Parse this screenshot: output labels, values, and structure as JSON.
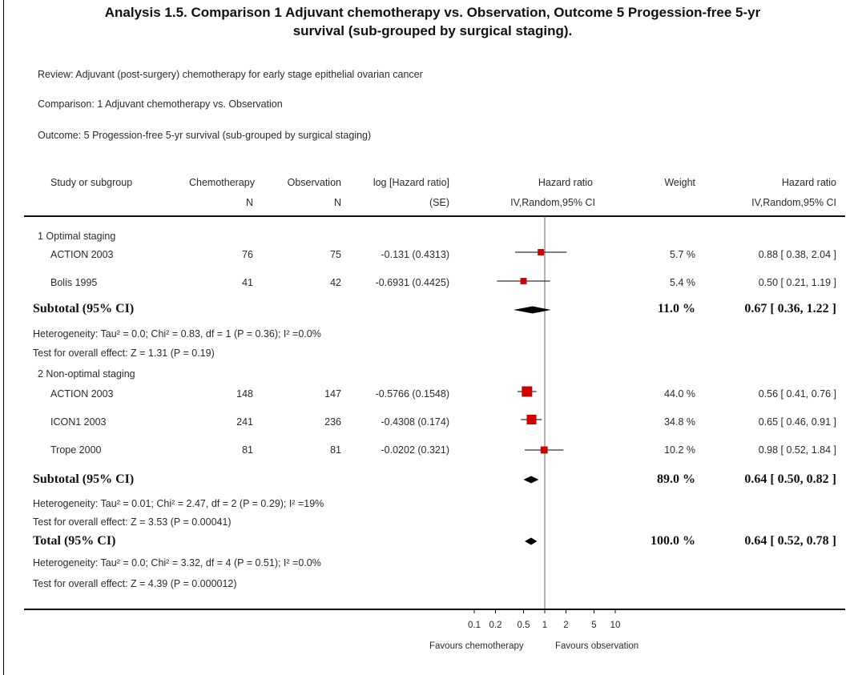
{
  "title": {
    "line1": "Analysis 1.5.   Comparison 1 Adjuvant chemotherapy vs. Observation, Outcome 5 Progession-free 5-yr",
    "line2": "survival (sub-grouped by surgical staging)."
  },
  "meta": {
    "review": "Review:   Adjuvant (post-surgery) chemotherapy for early stage epithelial ovarian cancer",
    "comparison": "Comparison:   1 Adjuvant chemotherapy vs. Observation",
    "outcome": "Outcome:   5 Progession-free 5-yr survival (sub-grouped by surgical staging)"
  },
  "header": {
    "study": "Study or subgroup",
    "chemo": "Chemotherapy",
    "chemo_n": "N",
    "obs": "Observation",
    "obs_n": "N",
    "loghr": "log [Hazard ratio]",
    "se": "(SE)",
    "hr_plot": "Hazard ratio",
    "hr_plot_sub": "IV,Random,95% CI",
    "weight": "Weight",
    "hr": "Hazard ratio",
    "hr_sub": "IV,Random,95% CI"
  },
  "groups": [
    {
      "label": "1 Optimal staging",
      "rows": [
        {
          "study": "ACTION 2003",
          "chemo_n": "76",
          "obs_n": "75",
          "loghr": "-0.131 (0.4313)",
          "weight": "5.7 %",
          "hr_text": "0.88 [ 0.38, 2.04 ]"
        },
        {
          "study": "Bolis 1995",
          "chemo_n": "41",
          "obs_n": "42",
          "loghr": "-0.6931 (0.4425)",
          "weight": "5.4 %",
          "hr_text": "0.50 [ 0.21, 1.19 ]"
        }
      ],
      "subtotal": {
        "label": "Subtotal (95% CI)",
        "weight": "11.0 %",
        "hr_text": "0.67 [ 0.36, 1.22 ]"
      },
      "heterogeneity": "Heterogeneity: Tau² = 0.0; Chi² = 0.83, df = 1 (P = 0.36); I² =0.0%",
      "overall": "Test for overall effect: Z = 1.31  (P = 0.19)"
    },
    {
      "label": "2 Non-optimal staging",
      "rows": [
        {
          "study": "ACTION 2003",
          "chemo_n": "148",
          "obs_n": "147",
          "loghr": "-0.5766 (0.1548)",
          "weight": "44.0 %",
          "hr_text": "0.56 [ 0.41, 0.76 ]"
        },
        {
          "study": "ICON1 2003",
          "chemo_n": "241",
          "obs_n": "236",
          "loghr": "-0.4308 (0.174)",
          "weight": "34.8 %",
          "hr_text": "0.65 [ 0.46, 0.91 ]"
        },
        {
          "study": "Trope 2000",
          "chemo_n": "81",
          "obs_n": "81",
          "loghr": "-0.0202 (0.321)",
          "weight": "10.2 %",
          "hr_text": "0.98 [ 0.52, 1.84 ]"
        }
      ],
      "subtotal": {
        "label": "Subtotal (95% CI)",
        "weight": "89.0 %",
        "hr_text": "0.64 [ 0.50, 0.82 ]"
      },
      "heterogeneity": "Heterogeneity: Tau² = 0.01; Chi² = 2.47, df = 2 (P = 0.29); I² =19%",
      "overall": "Test for overall effect: Z = 3.53  (P = 0.00041)"
    }
  ],
  "total": {
    "label": "Total (95% CI)",
    "weight": "100.0 %",
    "hr_text": "0.64 [ 0.52, 0.78 ]",
    "heterogeneity": "Heterogeneity: Tau² = 0.0; Chi² = 3.32, df = 4 (P = 0.51); I² =0.0%",
    "overall": "Test for overall effect: Z = 4.39  (P = 0.000012)"
  },
  "axis": {
    "favours_left": "Favours chemotherapy",
    "favours_right": "Favours observation"
  },
  "chart_data": {
    "type": "forest",
    "scale": "log",
    "xlim": [
      0.1,
      10
    ],
    "reference_line": 1,
    "ticks": [
      0.1,
      0.2,
      0.5,
      1,
      2,
      5,
      10
    ],
    "tick_labels": [
      "0.1",
      "0.2",
      "0.5",
      "1",
      "2",
      "5",
      "10"
    ],
    "studies": [
      {
        "group": "1 Optimal staging",
        "study": "ACTION 2003",
        "hr": 0.88,
        "ci": [
          0.38,
          2.04
        ],
        "weight": 5.7
      },
      {
        "group": "1 Optimal staging",
        "study": "Bolis 1995",
        "hr": 0.5,
        "ci": [
          0.21,
          1.19
        ],
        "weight": 5.4
      },
      {
        "group": "2 Non-optimal staging",
        "study": "ACTION 2003",
        "hr": 0.56,
        "ci": [
          0.41,
          0.76
        ],
        "weight": 44.0
      },
      {
        "group": "2 Non-optimal staging",
        "study": "ICON1 2003",
        "hr": 0.65,
        "ci": [
          0.46,
          0.91
        ],
        "weight": 34.8
      },
      {
        "group": "2 Non-optimal staging",
        "study": "Trope 2000",
        "hr": 0.98,
        "ci": [
          0.52,
          1.84
        ],
        "weight": 10.2
      }
    ],
    "pooled": [
      {
        "label": "Subtotal (95% CI)",
        "group": "1 Optimal staging",
        "hr": 0.67,
        "ci": [
          0.36,
          1.22
        ]
      },
      {
        "label": "Subtotal (95% CI)",
        "group": "2 Non-optimal staging",
        "hr": 0.64,
        "ci": [
          0.5,
          0.82
        ]
      },
      {
        "label": "Total (95% CI)",
        "hr": 0.64,
        "ci": [
          0.52,
          0.78
        ]
      }
    ],
    "colors": {
      "marker": "#cc0000",
      "diamond": "#000000",
      "line": "#000000"
    }
  }
}
